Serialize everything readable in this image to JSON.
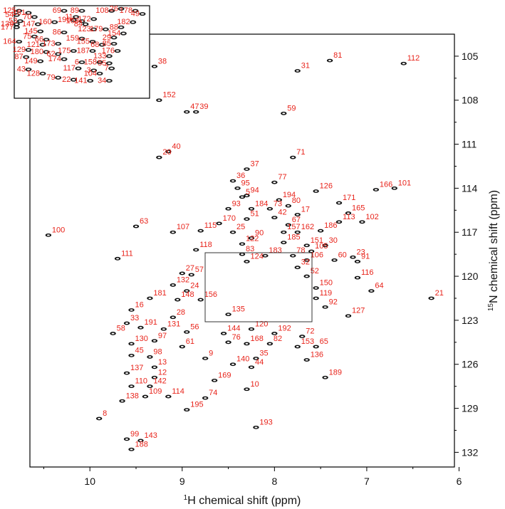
{
  "chart_data": {
    "type": "scatter",
    "xlabel_sup": "1",
    "xlabel": "H chemical shift (ppm)",
    "ylabel_sup": "15",
    "ylabel": "N chemical shift (ppm)",
    "xlim": [
      10.65,
      6.05
    ],
    "ylim": [
      103.5,
      133.0
    ],
    "x_ticks": [
      10,
      9,
      8,
      7,
      6
    ],
    "y_ticks": [
      105,
      108,
      111,
      114,
      117,
      120,
      123,
      126,
      129,
      132
    ],
    "label_color": "#e8231a",
    "peak_color": "#111111",
    "peaks": [
      {
        "label": "112",
        "x": 6.6,
        "y": 105.5
      },
      {
        "label": "81",
        "x": 7.4,
        "y": 105.3
      },
      {
        "label": "31",
        "x": 7.75,
        "y": 106.0
      },
      {
        "label": "38",
        "x": 9.3,
        "y": 105.7
      },
      {
        "label": "152",
        "x": 9.25,
        "y": 108.0
      },
      {
        "label": "47",
        "x": 8.95,
        "y": 108.8
      },
      {
        "label": "39",
        "x": 8.85,
        "y": 108.8
      },
      {
        "label": "59",
        "x": 7.9,
        "y": 108.9
      },
      {
        "label": "40",
        "x": 9.15,
        "y": 111.5
      },
      {
        "label": "20",
        "x": 9.25,
        "y": 111.9
      },
      {
        "label": "71",
        "x": 7.8,
        "y": 111.9
      },
      {
        "label": "37",
        "x": 8.3,
        "y": 112.7
      },
      {
        "label": "36",
        "x": 8.45,
        "y": 113.5
      },
      {
        "label": "77",
        "x": 8.0,
        "y": 113.6
      },
      {
        "label": "95",
        "x": 8.4,
        "y": 114.0
      },
      {
        "label": "94",
        "x": 8.3,
        "y": 114.5
      },
      {
        "label": "5",
        "x": 8.35,
        "y": 114.6
      },
      {
        "label": "126",
        "x": 7.55,
        "y": 114.2
      },
      {
        "label": "166",
        "x": 6.9,
        "y": 114.1
      },
      {
        "label": "101",
        "x": 6.7,
        "y": 114.0
      },
      {
        "label": "194",
        "x": 7.95,
        "y": 114.8
      },
      {
        "label": "80",
        "x": 7.85,
        "y": 115.2
      },
      {
        "label": "171",
        "x": 7.3,
        "y": 115.0
      },
      {
        "label": "93",
        "x": 8.5,
        "y": 115.4
      },
      {
        "label": "73",
        "x": 8.05,
        "y": 115.4
      },
      {
        "label": "184",
        "x": 8.25,
        "y": 115.4
      },
      {
        "label": "17",
        "x": 7.75,
        "y": 115.8
      },
      {
        "label": "165",
        "x": 7.2,
        "y": 115.7
      },
      {
        "label": "42",
        "x": 8.0,
        "y": 116.0
      },
      {
        "label": "51",
        "x": 8.3,
        "y": 116.1
      },
      {
        "label": "113",
        "x": 7.3,
        "y": 116.3
      },
      {
        "label": "102",
        "x": 7.05,
        "y": 116.3
      },
      {
        "label": "170",
        "x": 8.6,
        "y": 116.4
      },
      {
        "label": "67",
        "x": 7.85,
        "y": 116.5
      },
      {
        "label": "25",
        "x": 8.45,
        "y": 117.0
      },
      {
        "label": "157",
        "x": 7.9,
        "y": 117.0
      },
      {
        "label": "162",
        "x": 7.75,
        "y": 117.0
      },
      {
        "label": "186",
        "x": 7.5,
        "y": 116.9
      },
      {
        "label": "63",
        "x": 9.5,
        "y": 116.6
      },
      {
        "label": "107",
        "x": 9.1,
        "y": 117.0
      },
      {
        "label": "115",
        "x": 8.8,
        "y": 116.9
      },
      {
        "label": "90",
        "x": 8.25,
        "y": 117.4
      },
      {
        "label": "122",
        "x": 8.35,
        "y": 117.8
      },
      {
        "label": "185",
        "x": 7.9,
        "y": 117.7
      },
      {
        "label": "151",
        "x": 7.65,
        "y": 117.9
      },
      {
        "label": "30",
        "x": 7.45,
        "y": 117.9
      },
      {
        "label": "100",
        "x": 10.45,
        "y": 117.2
      },
      {
        "label": "118",
        "x": 8.85,
        "y": 118.2
      },
      {
        "label": "83",
        "x": 8.35,
        "y": 118.5
      },
      {
        "label": "183",
        "x": 8.1,
        "y": 118.6
      },
      {
        "label": "78",
        "x": 7.8,
        "y": 118.6
      },
      {
        "label": "105",
        "x": 7.6,
        "y": 118.3
      },
      {
        "label": "106",
        "x": 7.65,
        "y": 118.9
      },
      {
        "label": "23",
        "x": 7.15,
        "y": 118.7
      },
      {
        "label": "60",
        "x": 7.35,
        "y": 118.9
      },
      {
        "label": "91",
        "x": 7.1,
        "y": 119.0
      },
      {
        "label": "111",
        "x": 9.7,
        "y": 118.8
      },
      {
        "label": "124",
        "x": 8.3,
        "y": 119.0
      },
      {
        "label": "32",
        "x": 7.75,
        "y": 119.4
      },
      {
        "label": "27",
        "x": 9.0,
        "y": 119.8
      },
      {
        "label": "57",
        "x": 8.9,
        "y": 119.9
      },
      {
        "label": "52",
        "x": 7.65,
        "y": 120.0
      },
      {
        "label": "116",
        "x": 7.1,
        "y": 120.1
      },
      {
        "label": "132",
        "x": 9.1,
        "y": 120.6
      },
      {
        "label": "150",
        "x": 7.55,
        "y": 120.8
      },
      {
        "label": "24",
        "x": 8.95,
        "y": 121.0
      },
      {
        "label": "64",
        "x": 6.95,
        "y": 121.0
      },
      {
        "label": "119",
        "x": 7.55,
        "y": 121.5
      },
      {
        "label": "181",
        "x": 9.35,
        "y": 121.5
      },
      {
        "label": "148",
        "x": 9.05,
        "y": 121.6
      },
      {
        "label": "156",
        "x": 8.8,
        "y": 121.6
      },
      {
        "label": "21",
        "x": 6.3,
        "y": 121.5
      },
      {
        "label": "92",
        "x": 7.45,
        "y": 122.1
      },
      {
        "label": "16",
        "x": 9.55,
        "y": 122.3
      },
      {
        "label": "127",
        "x": 7.2,
        "y": 122.7
      },
      {
        "label": "28",
        "x": 9.1,
        "y": 122.8
      },
      {
        "label": "135",
        "x": 8.5,
        "y": 122.6
      },
      {
        "label": "33",
        "x": 9.6,
        "y": 123.2
      },
      {
        "label": "191",
        "x": 9.45,
        "y": 123.5
      },
      {
        "label": "131",
        "x": 9.2,
        "y": 123.6
      },
      {
        "label": "120",
        "x": 8.25,
        "y": 123.6
      },
      {
        "label": "56",
        "x": 8.95,
        "y": 123.8
      },
      {
        "label": "144",
        "x": 8.55,
        "y": 123.9
      },
      {
        "label": "58",
        "x": 9.75,
        "y": 123.9
      },
      {
        "label": "192",
        "x": 8.0,
        "y": 123.9
      },
      {
        "label": "72",
        "x": 7.7,
        "y": 124.1
      },
      {
        "label": "97",
        "x": 9.3,
        "y": 124.4
      },
      {
        "label": "76",
        "x": 8.5,
        "y": 124.5
      },
      {
        "label": "168",
        "x": 8.3,
        "y": 124.6
      },
      {
        "label": "82",
        "x": 8.05,
        "y": 124.6
      },
      {
        "label": "153",
        "x": 7.75,
        "y": 124.8
      },
      {
        "label": "130",
        "x": 9.55,
        "y": 124.6
      },
      {
        "label": "65",
        "x": 7.55,
        "y": 124.8
      },
      {
        "label": "61",
        "x": 9.0,
        "y": 124.8
      },
      {
        "label": "45",
        "x": 9.55,
        "y": 125.4
      },
      {
        "label": "98",
        "x": 9.35,
        "y": 125.5
      },
      {
        "label": "9",
        "x": 8.75,
        "y": 125.6
      },
      {
        "label": "35",
        "x": 8.2,
        "y": 125.6
      },
      {
        "label": "136",
        "x": 7.65,
        "y": 125.7
      },
      {
        "label": "140",
        "x": 8.45,
        "y": 126.0
      },
      {
        "label": "13",
        "x": 9.3,
        "y": 126.2
      },
      {
        "label": "44",
        "x": 8.25,
        "y": 126.2
      },
      {
        "label": "137",
        "x": 9.6,
        "y": 126.6
      },
      {
        "label": "189",
        "x": 7.45,
        "y": 126.9
      },
      {
        "label": "12",
        "x": 9.3,
        "y": 126.9
      },
      {
        "label": "169",
        "x": 8.65,
        "y": 127.1
      },
      {
        "label": "110",
        "x": 9.55,
        "y": 127.5
      },
      {
        "label": "142",
        "x": 9.35,
        "y": 127.5
      },
      {
        "label": "10",
        "x": 8.3,
        "y": 127.7
      },
      {
        "label": "109",
        "x": 9.4,
        "y": 128.2
      },
      {
        "label": "114",
        "x": 9.15,
        "y": 128.2
      },
      {
        "label": "74",
        "x": 8.75,
        "y": 128.3
      },
      {
        "label": "138",
        "x": 9.65,
        "y": 128.5
      },
      {
        "label": "195",
        "x": 8.95,
        "y": 129.1
      },
      {
        "label": "8",
        "x": 9.9,
        "y": 129.7
      },
      {
        "label": "193",
        "x": 8.2,
        "y": 130.3
      },
      {
        "label": "99",
        "x": 9.6,
        "y": 131.1
      },
      {
        "label": "143",
        "x": 9.45,
        "y": 131.2
      },
      {
        "label": "188",
        "x": 9.55,
        "y": 131.8
      }
    ],
    "inset": {
      "xlim": [
        8.72,
        7.58
      ],
      "ylim": [
        118.55,
        123.05
      ],
      "peaks": [
        {
          "label": "125",
          "x": 8.68,
          "y": 118.8
        },
        {
          "label": "161",
          "x": 8.6,
          "y": 118.9
        },
        {
          "label": "160",
          "x": 8.38,
          "y": 119.35
        },
        {
          "label": "69",
          "x": 8.3,
          "y": 118.8
        },
        {
          "label": "89",
          "x": 8.15,
          "y": 118.8
        },
        {
          "label": "11",
          "x": 8.2,
          "y": 119.1
        },
        {
          "label": "163",
          "x": 8.15,
          "y": 119.3
        },
        {
          "label": "172",
          "x": 8.05,
          "y": 119.2
        },
        {
          "label": "108",
          "x": 7.9,
          "y": 118.8
        },
        {
          "label": "26",
          "x": 7.82,
          "y": 118.7
        },
        {
          "label": "178",
          "x": 7.7,
          "y": 118.8
        },
        {
          "label": "49",
          "x": 7.64,
          "y": 118.95
        },
        {
          "label": "54",
          "x": 8.7,
          "y": 119.0
        },
        {
          "label": "53",
          "x": 8.67,
          "y": 119.3
        },
        {
          "label": "70",
          "x": 8.55,
          "y": 119.1
        },
        {
          "label": "190",
          "x": 8.22,
          "y": 119.25
        },
        {
          "label": "139",
          "x": 8.7,
          "y": 119.45
        },
        {
          "label": "147",
          "x": 8.52,
          "y": 119.45
        },
        {
          "label": "84",
          "x": 8.12,
          "y": 119.45
        },
        {
          "label": "182",
          "x": 7.72,
          "y": 119.35
        },
        {
          "label": "177",
          "x": 8.7,
          "y": 119.6
        },
        {
          "label": "145",
          "x": 8.5,
          "y": 119.8
        },
        {
          "label": "123",
          "x": 8.05,
          "y": 119.7
        },
        {
          "label": "88",
          "x": 7.82,
          "y": 119.6
        },
        {
          "label": "154",
          "x": 7.8,
          "y": 119.9
        },
        {
          "label": "86",
          "x": 8.3,
          "y": 119.85
        },
        {
          "label": "179",
          "x": 7.95,
          "y": 119.7
        },
        {
          "label": "75",
          "x": 8.55,
          "y": 120.05
        },
        {
          "label": "66",
          "x": 8.45,
          "y": 120.2
        },
        {
          "label": "159",
          "x": 8.15,
          "y": 120.15
        },
        {
          "label": "29",
          "x": 7.88,
          "y": 120.1
        },
        {
          "label": "164",
          "x": 8.68,
          "y": 120.3
        },
        {
          "label": "121",
          "x": 8.48,
          "y": 120.45
        },
        {
          "label": "173",
          "x": 8.35,
          "y": 120.4
        },
        {
          "label": "155",
          "x": 8.06,
          "y": 120.3
        },
        {
          "label": "68",
          "x": 7.98,
          "y": 120.45
        },
        {
          "label": "85",
          "x": 7.88,
          "y": 120.4
        },
        {
          "label": "129",
          "x": 8.6,
          "y": 120.7
        },
        {
          "label": "180",
          "x": 8.45,
          "y": 120.8
        },
        {
          "label": "62",
          "x": 8.35,
          "y": 120.9
        },
        {
          "label": "175",
          "x": 8.22,
          "y": 120.75
        },
        {
          "label": "187",
          "x": 8.06,
          "y": 120.75
        },
        {
          "label": "176",
          "x": 7.85,
          "y": 120.75
        },
        {
          "label": "87",
          "x": 8.62,
          "y": 121.05
        },
        {
          "label": "133",
          "x": 7.92,
          "y": 121.0
        },
        {
          "label": "149",
          "x": 8.5,
          "y": 121.25
        },
        {
          "label": "174",
          "x": 8.3,
          "y": 121.15
        },
        {
          "label": "6",
          "x": 8.15,
          "y": 121.3
        },
        {
          "label": "158",
          "x": 8.0,
          "y": 121.3
        },
        {
          "label": "55",
          "x": 7.92,
          "y": 121.35
        },
        {
          "label": "43",
          "x": 8.6,
          "y": 121.65
        },
        {
          "label": "117",
          "x": 8.18,
          "y": 121.6
        },
        {
          "label": "3",
          "x": 8.05,
          "y": 121.7
        },
        {
          "label": "7",
          "x": 7.9,
          "y": 121.6
        },
        {
          "label": "128",
          "x": 8.48,
          "y": 121.85
        },
        {
          "label": "104",
          "x": 8.0,
          "y": 121.85
        },
        {
          "label": "79",
          "x": 8.35,
          "y": 122.05
        },
        {
          "label": "22",
          "x": 8.22,
          "y": 122.15
        },
        {
          "label": "141",
          "x": 8.08,
          "y": 122.2
        },
        {
          "label": "34",
          "x": 7.92,
          "y": 122.2
        }
      ]
    }
  }
}
